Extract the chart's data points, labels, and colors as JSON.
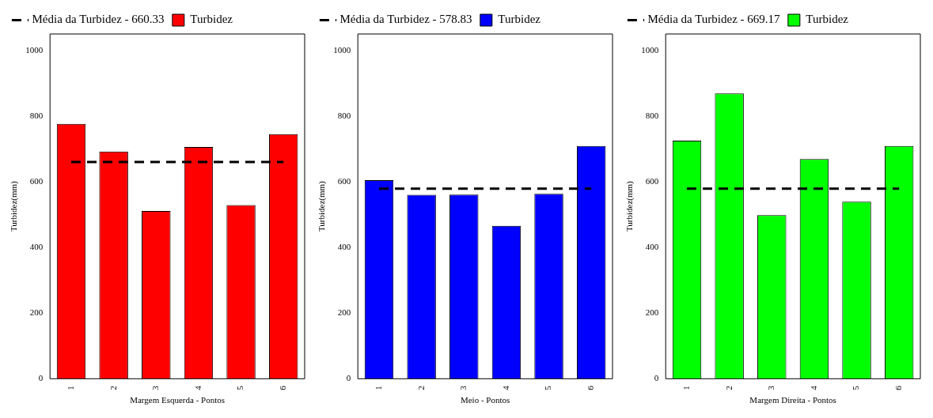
{
  "chart_data": [
    {
      "type": "bar",
      "categories": [
        "1",
        "2",
        "3",
        "4",
        "5",
        "6"
      ],
      "series": [
        {
          "name": "Turbidez",
          "color": "#ff0000",
          "values": [
            776,
            692,
            511,
            706,
            529,
            745
          ]
        }
      ],
      "xlabel": "Margem Esquerda - Pontos",
      "ylabel": "Turbidez(mm)",
      "ylim": [
        0,
        1050
      ],
      "yticks": [
        0,
        200,
        400,
        600,
        800,
        1000
      ],
      "ref_lines": [
        {
          "axis": "y",
          "value": 660.33,
          "label": "Média da Turbidez - 660.33",
          "line_style": "dashed",
          "color": "#000000"
        }
      ],
      "legend": "top left",
      "grid": false
    },
    {
      "type": "bar",
      "categories": [
        "1",
        "2",
        "3",
        "4",
        "5",
        "6"
      ],
      "series": [
        {
          "name": "Turbidez",
          "color": "#0000ff",
          "values": [
            605,
            560,
            561,
            466,
            563,
            709
          ]
        }
      ],
      "xlabel": "Meio - Pontos",
      "ylabel": "Turbidez(mm)",
      "ylim": [
        0,
        1050
      ],
      "yticks": [
        0,
        200,
        400,
        600,
        800,
        1000
      ],
      "ref_lines": [
        {
          "axis": "y",
          "value": 578.83,
          "label": "Média da Turbidez - 578.83",
          "line_style": "dashed",
          "color": "#000000"
        }
      ],
      "legend": "top left",
      "grid": false
    },
    {
      "type": "bar",
      "categories": [
        "1",
        "2",
        "3",
        "4",
        "5",
        "6"
      ],
      "series": [
        {
          "name": "Turbidez",
          "color": "#00ff00",
          "values": [
            725,
            869,
            498,
            669,
            539,
            709
          ]
        }
      ],
      "xlabel": "Margem Direita - Pontos",
      "ylabel": "Turbidez(mm)",
      "ylim": [
        0,
        1050
      ],
      "yticks": [
        0,
        200,
        400,
        600,
        800,
        1000
      ],
      "ref_lines": [
        {
          "axis": "y",
          "value": 578.83,
          "label": "Média da Turbidez - 669.17",
          "line_style": "dashed",
          "color": "#000000"
        }
      ],
      "legend": "top left",
      "grid": false
    }
  ]
}
